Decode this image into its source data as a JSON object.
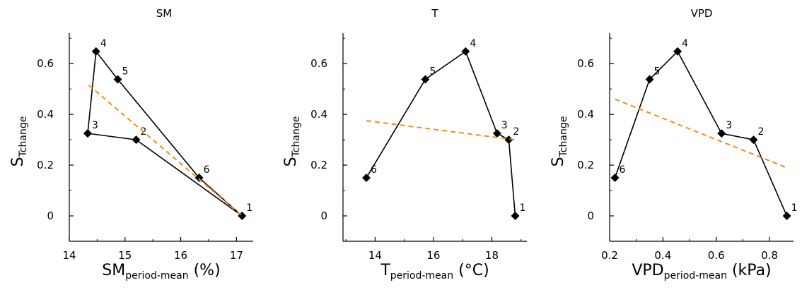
{
  "chart_data": [
    {
      "type": "scatter",
      "title": "SM",
      "xlabel": {
        "main": "SM",
        "sub": "period-mean",
        "suffix": " (%)"
      },
      "ylabel": {
        "main": "S",
        "sub": "Tchange"
      },
      "xlim": [
        14,
        17.3
      ],
      "ylim": [
        -0.1,
        0.72
      ],
      "xticks": [
        14,
        15,
        16,
        17
      ],
      "xtick_labels": [
        "14",
        "15",
        "16",
        "17"
      ],
      "yticks": [
        0,
        0.2,
        0.4,
        0.6
      ],
      "ytick_labels": [
        "0",
        "0.2",
        "0.4",
        "0.6"
      ],
      "series": [
        {
          "type": "line-marker",
          "color": "#000000",
          "points": [
            {
              "x": 14.33,
              "y": 0.325,
              "label": "3"
            },
            {
              "x": 14.48,
              "y": 0.648,
              "label": "4"
            },
            {
              "x": 14.87,
              "y": 0.538,
              "label": "5"
            },
            {
              "x": 16.33,
              "y": 0.15,
              "label": "6"
            },
            {
              "x": 17.1,
              "y": 0,
              "label": "1"
            },
            {
              "x": 15.2,
              "y": 0.3,
              "label": "2"
            },
            {
              "x": 14.33,
              "y": 0.325,
              "label": ""
            }
          ]
        },
        {
          "type": "dashed-fit",
          "color": "#f08c1e",
          "x": [
            14.35,
            17.1
          ],
          "y": [
            0.515,
            0.0
          ]
        }
      ]
    },
    {
      "type": "scatter",
      "title": "T",
      "xlabel": {
        "main": "T",
        "sub": "period-mean",
        "suffix": " (°C)"
      },
      "ylabel": {
        "main": "S",
        "sub": "Tchange"
      },
      "xlim": [
        12.9,
        19.2
      ],
      "ylim": [
        -0.1,
        0.72
      ],
      "xticks": [
        14,
        16,
        18
      ],
      "xtick_labels": [
        "14",
        "16",
        "18"
      ],
      "yticks": [
        0,
        0.2,
        0.4,
        0.6
      ],
      "ytick_labels": [
        "0",
        "0.2",
        "0.4",
        "0.6"
      ],
      "series": [
        {
          "type": "line-marker",
          "color": "#000000",
          "points": [
            {
              "x": 13.7,
              "y": 0.15,
              "label": "6"
            },
            {
              "x": 15.72,
              "y": 0.538,
              "label": "5"
            },
            {
              "x": 17.1,
              "y": 0.648,
              "label": "4"
            },
            {
              "x": 18.18,
              "y": 0.325,
              "label": "3"
            },
            {
              "x": 18.58,
              "y": 0.3,
              "label": "2"
            },
            {
              "x": 18.8,
              "y": 0,
              "label": "1"
            }
          ]
        },
        {
          "type": "dashed-fit",
          "color": "#f08c1e",
          "x": [
            13.7,
            18.8
          ],
          "y": [
            0.375,
            0.3
          ]
        }
      ]
    },
    {
      "type": "scatter",
      "title": "VPD",
      "xlabel": {
        "main": "VPD",
        "sub": "period-mean",
        "suffix": " (kPa)"
      },
      "ylabel": {
        "main": "S",
        "sub": "Tchange"
      },
      "xlim": [
        0.2,
        0.89
      ],
      "ylim": [
        -0.1,
        0.72
      ],
      "xticks": [
        0.2,
        0.4,
        0.6,
        0.8
      ],
      "xtick_labels": [
        "0.2",
        "0.4",
        "0.6",
        "0.8"
      ],
      "yticks": [
        0,
        0.2,
        0.4,
        0.6
      ],
      "ytick_labels": [
        "0",
        "0.2",
        "0.4",
        "0.6"
      ],
      "series": [
        {
          "type": "line-marker",
          "color": "#000000",
          "points": [
            {
              "x": 0.22,
              "y": 0.15,
              "label": "6"
            },
            {
              "x": 0.35,
              "y": 0.538,
              "label": "5"
            },
            {
              "x": 0.455,
              "y": 0.648,
              "label": "4"
            },
            {
              "x": 0.62,
              "y": 0.325,
              "label": "3"
            },
            {
              "x": 0.74,
              "y": 0.3,
              "label": "2"
            },
            {
              "x": 0.865,
              "y": 0,
              "label": "1"
            }
          ]
        },
        {
          "type": "dashed-fit",
          "color": "#f08c1e",
          "x": [
            0.22,
            0.865
          ],
          "y": [
            0.46,
            0.19
          ]
        }
      ]
    }
  ]
}
